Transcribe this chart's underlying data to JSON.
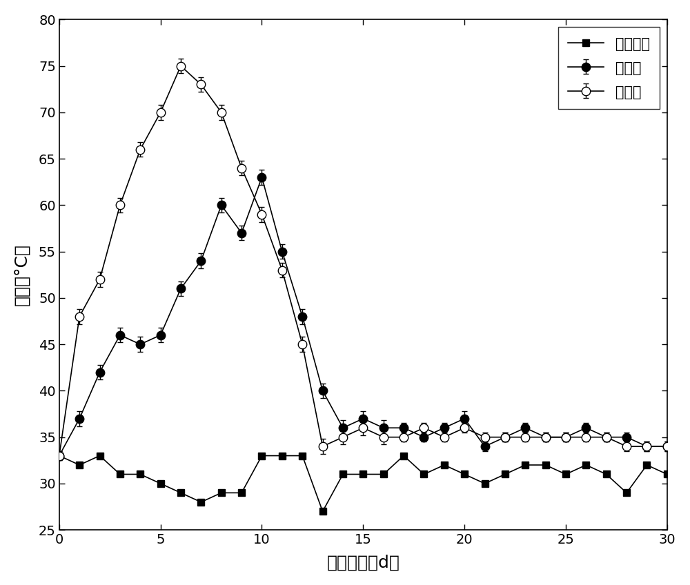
{
  "title": "",
  "xlabel": "堆肥时间（d）",
  "ylabel": "温度（°C）",
  "xlim": [
    0,
    30
  ],
  "ylim": [
    25,
    80
  ],
  "xticks": [
    0,
    5,
    10,
    15,
    20,
    25,
    30
  ],
  "yticks": [
    25,
    30,
    35,
    40,
    45,
    50,
    55,
    60,
    65,
    70,
    75,
    80
  ],
  "legend_labels": [
    "环境温度",
    "对照组",
    "实验组"
  ],
  "env_x": [
    0,
    1,
    2,
    3,
    4,
    5,
    6,
    7,
    8,
    9,
    10,
    11,
    12,
    13,
    14,
    15,
    16,
    17,
    18,
    19,
    20,
    21,
    22,
    23,
    24,
    25,
    26,
    27,
    28,
    29,
    30
  ],
  "env_y": [
    33,
    32,
    33,
    31,
    31,
    30,
    29,
    28,
    29,
    29,
    33,
    33,
    33,
    27,
    31,
    31,
    31,
    33,
    31,
    32,
    31,
    30,
    31,
    32,
    32,
    31,
    32,
    31,
    29,
    32,
    31
  ],
  "ctrl_x": [
    0,
    1,
    2,
    3,
    4,
    5,
    6,
    7,
    8,
    9,
    10,
    11,
    12,
    13,
    14,
    15,
    16,
    17,
    18,
    19,
    20,
    21,
    22,
    23,
    24,
    25,
    26,
    27,
    28,
    29,
    30
  ],
  "ctrl_y": [
    33,
    37,
    42,
    46,
    45,
    46,
    51,
    54,
    60,
    57,
    63,
    55,
    48,
    40,
    36,
    37,
    36,
    36,
    35,
    36,
    37,
    34,
    35,
    36,
    35,
    35,
    36,
    35,
    35,
    34,
    34
  ],
  "ctrl_err": [
    0.5,
    0.8,
    0.8,
    0.8,
    0.8,
    0.8,
    0.8,
    0.8,
    0.8,
    0.8,
    0.8,
    0.8,
    0.8,
    0.8,
    0.8,
    0.8,
    0.8,
    0.5,
    0.5,
    0.5,
    0.8,
    0.5,
    0.5,
    0.5,
    0.5,
    0.5,
    0.5,
    0.5,
    0.5,
    0.5,
    0.5
  ],
  "exp_x": [
    0,
    1,
    2,
    3,
    4,
    5,
    6,
    7,
    8,
    9,
    10,
    11,
    12,
    13,
    14,
    15,
    16,
    17,
    18,
    19,
    20,
    21,
    22,
    23,
    24,
    25,
    26,
    27,
    28,
    29,
    30
  ],
  "exp_y": [
    33,
    48,
    52,
    60,
    66,
    70,
    75,
    73,
    70,
    64,
    59,
    53,
    45,
    34,
    35,
    36,
    35,
    35,
    36,
    35,
    36,
    35,
    35,
    35,
    35,
    35,
    35,
    35,
    34,
    34,
    34
  ],
  "exp_err": [
    0.5,
    0.8,
    0.8,
    0.8,
    0.8,
    0.8,
    0.8,
    0.8,
    0.8,
    0.8,
    0.8,
    0.8,
    0.8,
    0.8,
    0.8,
    0.8,
    0.8,
    0.5,
    0.5,
    0.5,
    0.5,
    0.5,
    0.5,
    0.5,
    0.5,
    0.5,
    0.5,
    0.5,
    0.5,
    0.5,
    0.5
  ],
  "line_color": "#000000",
  "background_color": "#ffffff",
  "figsize": [
    10.0,
    8.48
  ],
  "dpi": 100
}
